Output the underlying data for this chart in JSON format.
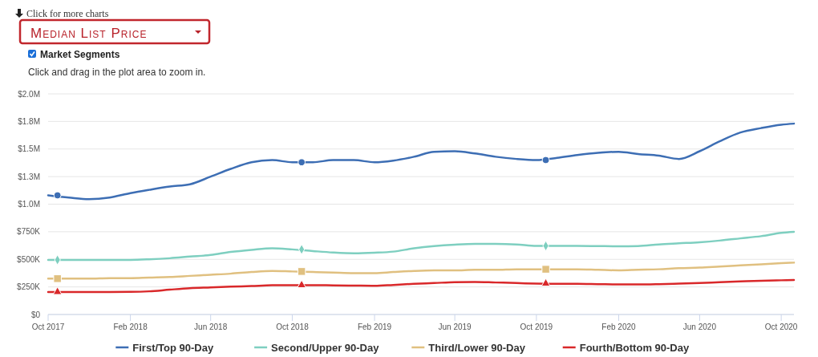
{
  "chart_data": {
    "type": "line",
    "title": "Median List Price",
    "annotations": [
      "Click for more charts",
      "Market Segments",
      "Click and drag in the plot area to zoom in."
    ],
    "x": [
      "2017-10-01",
      "2017-11-01",
      "2017-12-01",
      "2018-01-01",
      "2018-02-01",
      "2018-03-01",
      "2018-04-01",
      "2018-05-01",
      "2018-06-01",
      "2018-07-01",
      "2018-08-01",
      "2018-09-01",
      "2018-10-01",
      "2018-11-01",
      "2018-12-01",
      "2019-01-01",
      "2019-02-01",
      "2019-03-01",
      "2019-04-01",
      "2019-05-01",
      "2019-06-01",
      "2019-07-01",
      "2019-08-01",
      "2019-09-01",
      "2019-10-01",
      "2019-11-01",
      "2019-12-01",
      "2020-01-01",
      "2020-02-01",
      "2020-03-01",
      "2020-04-01",
      "2020-05-01",
      "2020-06-01",
      "2020-07-01",
      "2020-08-01",
      "2020-09-01",
      "2020-10-01",
      "2020-10-20"
    ],
    "xlim": [
      "2017-10-01",
      "2020-10-20"
    ],
    "xticks": [
      {
        "value": "2017-10-01",
        "label": "Oct 2017"
      },
      {
        "value": "2018-02-01",
        "label": "Feb 2018"
      },
      {
        "value": "2018-06-01",
        "label": "Jun 2018"
      },
      {
        "value": "2018-10-01",
        "label": "Oct 2018"
      },
      {
        "value": "2019-02-01",
        "label": "Feb 2019"
      },
      {
        "value": "2019-06-01",
        "label": "Jun 2019"
      },
      {
        "value": "2019-10-01",
        "label": "Oct 2019"
      },
      {
        "value": "2020-02-01",
        "label": "Feb 2020"
      },
      {
        "value": "2020-06-01",
        "label": "Jun 2020"
      },
      {
        "value": "2020-10-01",
        "label": "Oct 2020"
      }
    ],
    "ylim": [
      0,
      2000000
    ],
    "yticks": [
      {
        "value": 0,
        "label": "$0"
      },
      {
        "value": 250000,
        "label": "$250K"
      },
      {
        "value": 500000,
        "label": "$500K"
      },
      {
        "value": 750000,
        "label": "$750K"
      },
      {
        "value": 1000000,
        "label": "$1.0M"
      },
      {
        "value": 1250000,
        "label": "$1.3M"
      },
      {
        "value": 1500000,
        "label": "$1.5M"
      },
      {
        "value": 1750000,
        "label": "$1.8M"
      },
      {
        "value": 2000000,
        "label": "$2.0M"
      }
    ],
    "grid": "y",
    "legend": "bottom",
    "series": [
      {
        "name": "First/Top 90-Day",
        "color": "#3d6eb4",
        "values": [
          1080000,
          1060000,
          1045000,
          1060000,
          1100000,
          1130000,
          1160000,
          1180000,
          1250000,
          1320000,
          1380000,
          1400000,
          1380000,
          1380000,
          1400000,
          1400000,
          1380000,
          1395000,
          1430000,
          1475000,
          1480000,
          1460000,
          1430000,
          1410000,
          1400000,
          1420000,
          1445000,
          1465000,
          1475000,
          1455000,
          1440000,
          1410000,
          1480000,
          1570000,
          1650000,
          1690000,
          1720000,
          1730000
        ]
      },
      {
        "name": "Second/Upper 90-Day",
        "color": "#7ecfc0",
        "values": [
          495000,
          495000,
          495000,
          495000,
          495000,
          500000,
          510000,
          525000,
          540000,
          567000,
          586000,
          600000,
          590000,
          575000,
          562000,
          555000,
          560000,
          570000,
          600000,
          620000,
          633000,
          640000,
          640000,
          635000,
          622000,
          622000,
          622000,
          620000,
          618000,
          620000,
          635000,
          645000,
          655000,
          670000,
          690000,
          710000,
          740000,
          749000
        ]
      },
      {
        "name": "Third/Lower 90-Day",
        "color": "#e0c080",
        "values": [
          325000,
          325000,
          325000,
          330000,
          330000,
          335000,
          340000,
          350000,
          360000,
          370000,
          385000,
          395000,
          390000,
          385000,
          380000,
          375000,
          375000,
          385000,
          395000,
          400000,
          400000,
          405000,
          405000,
          410000,
          410000,
          410000,
          410000,
          405000,
          400000,
          405000,
          410000,
          420000,
          425000,
          435000,
          445000,
          455000,
          465000,
          470000
        ]
      },
      {
        "name": "Fourth/Bottom 90-Day",
        "color": "#d9282a",
        "values": [
          204000,
          204000,
          204000,
          204000,
          205000,
          210000,
          225000,
          238000,
          245000,
          252000,
          258000,
          265000,
          266000,
          266000,
          264000,
          262000,
          260000,
          268000,
          278000,
          285000,
          293000,
          295000,
          290000,
          285000,
          280000,
          278000,
          278000,
          275000,
          272000,
          272000,
          275000,
          280000,
          285000,
          293000,
          300000,
          306000,
          310000,
          313000
        ]
      },
      {
        "type": "scatter",
        "color": "#3d6eb4",
        "marker": "circle",
        "x": [
          "2017-10-15",
          "2018-10-15",
          "2019-10-15"
        ],
        "values": [
          1080000,
          1380000,
          1400000
        ]
      },
      {
        "type": "scatter",
        "color": "#7ecfc0",
        "marker": "diamond",
        "x": [
          "2017-10-15",
          "2018-10-15",
          "2019-10-15"
        ],
        "values": [
          495000,
          590000,
          622000
        ]
      },
      {
        "type": "scatter",
        "color": "#e0c080",
        "marker": "square",
        "x": [
          "2017-10-15",
          "2018-10-15",
          "2019-10-15"
        ],
        "values": [
          325000,
          390000,
          410000
        ]
      },
      {
        "type": "scatter",
        "color": "#d9282a",
        "marker": "triangle",
        "x": [
          "2017-10-15",
          "2018-10-15",
          "2019-10-15"
        ],
        "values": [
          204000,
          266000,
          280000
        ]
      }
    ]
  }
}
